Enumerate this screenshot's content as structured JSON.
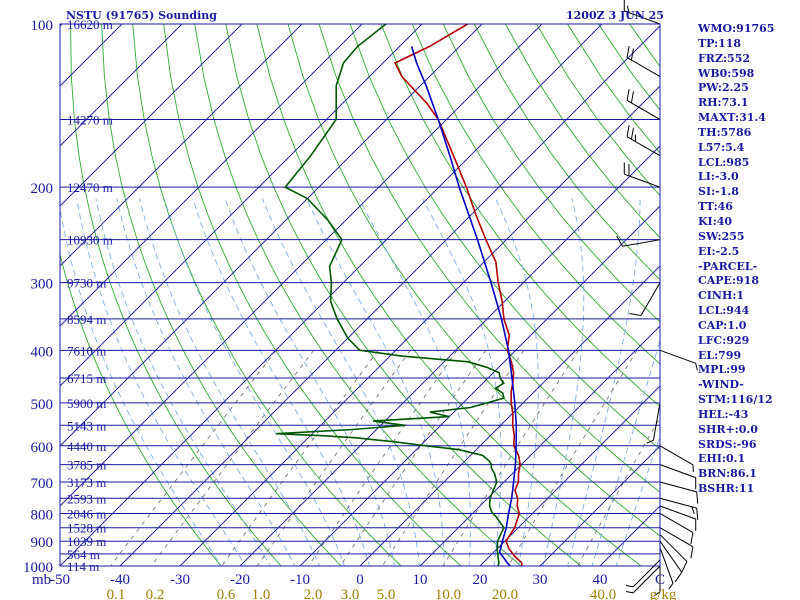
{
  "header": {
    "station": "NSTU (91765) Sounding",
    "time": "1200Z  3 JUN 25"
  },
  "indices": [
    "WMO:91765",
    "TP:118",
    "FRZ:552",
    "WB0:598",
    "PW:2.25",
    "RH:73.1",
    "MAXT:31.4",
    "TH:5786",
    "L57:5.4",
    "LCL:985",
    "LI:-3.0",
    "SI:-1.8",
    "TT:46",
    "KI:40",
    "SW:255",
    "EI:-2.5",
    "-PARCEL-",
    "CAPE:918",
    "CINH:1",
    "LCL:944",
    "CAP:1.0",
    "LFC:929",
    "EL:799",
    "MPL:99",
    "-WIND-",
    "STM:116/12",
    "HEL:-43",
    "SHR+:0.0",
    "SRDS:-96",
    "EHI:0.1",
    "BRN:86.1",
    "BSHR:11"
  ],
  "colors": {
    "isobar": "#1a1aa0",
    "isotherm": "#2a2aa0",
    "dry_adiabat": "#33aa33",
    "moist_adiabat": "#7fb0e8",
    "mixing_ratio": "#777777",
    "temperature": "#b00000",
    "dewpoint": "#005500",
    "parcel": "#0000c0",
    "label": "#1a1aa0",
    "wind": "#000000"
  },
  "chart_data": {
    "type": "line",
    "diagram": "skew-T log-P",
    "x_unit_label": "C",
    "y_unit_label": "mb",
    "x_range_c": [
      -50,
      50
    ],
    "y_range_mb": [
      100,
      1000
    ],
    "y_scale": "log",
    "isotherm_skew": "45 degrees",
    "pressure_ticks": [
      100,
      200,
      300,
      400,
      500,
      600,
      700,
      800,
      900,
      1000
    ],
    "temperature_ticks": [
      "-50",
      "-40",
      "-30",
      "-20",
      "-10",
      "0",
      "10",
      "20",
      "30",
      "40",
      "C"
    ],
    "mixing_ratio_labels": [
      "0.1",
      "0.2",
      "0.6",
      "1.0",
      "2.0",
      "3.0",
      "5.0",
      "10.0",
      "20.0",
      "40.0",
      "g/kg"
    ],
    "height_labels": [
      {
        "p": 100,
        "text": "16620 m"
      },
      {
        "p": 150,
        "text": "14270 m"
      },
      {
        "p": 200,
        "text": "12470 m"
      },
      {
        "p": 250,
        "text": "10930 m"
      },
      {
        "p": 300,
        "text": "9730 m"
      },
      {
        "p": 350,
        "text": "8594 m"
      },
      {
        "p": 400,
        "text": "7610 m"
      },
      {
        "p": 450,
        "text": "6715 m"
      },
      {
        "p": 500,
        "text": "5900 m"
      },
      {
        "p": 550,
        "text": "5143 m"
      },
      {
        "p": 600,
        "text": "4440 m"
      },
      {
        "p": 650,
        "text": "3785 m"
      },
      {
        "p": 700,
        "text": "3173 m"
      },
      {
        "p": 750,
        "text": "2593 m"
      },
      {
        "p": 800,
        "text": "2046 m"
      },
      {
        "p": 850,
        "text": "1528 m"
      },
      {
        "p": 900,
        "text": "1039 m"
      },
      {
        "p": 950,
        "text": "564 m"
      },
      {
        "p": 1000,
        "text": "114 m"
      }
    ],
    "series": [
      {
        "role": "temperature",
        "points": [
          [
            1000,
            27
          ],
          [
            986,
            26.4
          ],
          [
            960,
            24.2
          ],
          [
            930,
            22
          ],
          [
            900,
            20.2
          ],
          [
            875,
            19.8
          ],
          [
            850,
            19.4
          ],
          [
            825,
            18.6
          ],
          [
            800,
            17.8
          ],
          [
            775,
            16.2
          ],
          [
            750,
            15.0
          ],
          [
            725,
            13.2
          ],
          [
            700,
            12.4
          ],
          [
            675,
            11.0
          ],
          [
            650,
            9.8
          ],
          [
            625,
            8.0
          ],
          [
            600,
            5.6
          ],
          [
            575,
            4.0
          ],
          [
            550,
            2.0
          ],
          [
            525,
            0.2
          ],
          [
            500,
            -2.0
          ],
          [
            475,
            -4.0
          ],
          [
            460,
            -5.0
          ],
          [
            440,
            -6.6
          ],
          [
            420,
            -8.8
          ],
          [
            400,
            -11.4
          ],
          [
            375,
            -13.6
          ],
          [
            350,
            -17.2
          ],
          [
            325,
            -20.4
          ],
          [
            300,
            -24.2
          ],
          [
            275,
            -28.0
          ],
          [
            250,
            -33.4
          ],
          [
            225,
            -39.2
          ],
          [
            200,
            -45.4
          ],
          [
            175,
            -52.8
          ],
          [
            150,
            -61.4
          ],
          [
            140,
            -66.0
          ],
          [
            125,
            -74.6
          ],
          [
            118,
            -78.0
          ],
          [
            110,
            -75.0
          ],
          [
            100,
            -72.4
          ]
        ]
      },
      {
        "role": "dewpoint",
        "points": [
          [
            1000,
            23.0
          ],
          [
            986,
            22.6
          ],
          [
            960,
            21.4
          ],
          [
            930,
            20.0
          ],
          [
            900,
            18.8
          ],
          [
            875,
            18.2
          ],
          [
            850,
            17.6
          ],
          [
            825,
            15.6
          ],
          [
            810,
            14.4
          ],
          [
            800,
            13.4
          ],
          [
            790,
            12.6
          ],
          [
            775,
            11.6
          ],
          [
            750,
            10.4
          ],
          [
            725,
            9.6
          ],
          [
            700,
            8.8
          ],
          [
            675,
            7.0
          ],
          [
            660,
            5.6
          ],
          [
            650,
            5.0
          ],
          [
            640,
            4.0
          ],
          [
            625,
            2.0
          ],
          [
            610,
            -3.0
          ],
          [
            600,
            -9.0
          ],
          [
            590,
            -15.0
          ],
          [
            580,
            -22.0
          ],
          [
            575,
            -28.0
          ],
          [
            570,
            -36.0
          ],
          [
            560,
            -24.0
          ],
          [
            550,
            -16.0
          ],
          [
            540,
            -22.0
          ],
          [
            530,
            -10.0
          ],
          [
            520,
            -14.0
          ],
          [
            510,
            -8.0
          ],
          [
            500,
            -6.0
          ],
          [
            490,
            -4.0
          ],
          [
            480,
            -5.0
          ],
          [
            470,
            -7.0
          ],
          [
            460,
            -6.5
          ],
          [
            450,
            -8.0
          ],
          [
            440,
            -9.0
          ],
          [
            430,
            -12.0
          ],
          [
            420,
            -16.0
          ],
          [
            410,
            -28.0
          ],
          [
            400,
            -36.0
          ],
          [
            380,
            -40.0
          ],
          [
            350,
            -45.0
          ],
          [
            325,
            -49.0
          ],
          [
            300,
            -52.0
          ],
          [
            280,
            -55.0
          ],
          [
            250,
            -57.4
          ],
          [
            230,
            -63.0
          ],
          [
            210,
            -70.0
          ],
          [
            200,
            -75.6
          ],
          [
            175,
            -76.6
          ],
          [
            150,
            -78.4
          ],
          [
            130,
            -84.0
          ],
          [
            118,
            -86.6
          ],
          [
            110,
            -87.0
          ],
          [
            100,
            -86.0
          ]
        ]
      },
      {
        "role": "parcel",
        "points": [
          [
            1000,
            25.0
          ],
          [
            986,
            24.0
          ],
          [
            944,
            21.0
          ],
          [
            900,
            19.6
          ],
          [
            850,
            18.0
          ],
          [
            800,
            16.0
          ],
          [
            750,
            14.0
          ],
          [
            700,
            11.6
          ],
          [
            650,
            9.0
          ],
          [
            600,
            6.0
          ],
          [
            550,
            2.6
          ],
          [
            500,
            -1.4
          ],
          [
            450,
            -6.0
          ],
          [
            400,
            -11.2
          ],
          [
            350,
            -17.6
          ],
          [
            300,
            -25.4
          ],
          [
            250,
            -34.8
          ],
          [
            200,
            -46.6
          ],
          [
            175,
            -53.4
          ],
          [
            150,
            -61.4
          ],
          [
            130,
            -69.0
          ],
          [
            118,
            -74.4
          ],
          [
            110,
            -78.0
          ]
        ]
      }
    ],
    "wind_barbs": [
      {
        "p": 1000,
        "dir": 225,
        "spd": 5
      },
      {
        "p": 975,
        "dir": 225,
        "spd": 5
      },
      {
        "p": 950,
        "dir": 180,
        "spd": 5
      },
      {
        "p": 925,
        "dir": 160,
        "spd": 5
      },
      {
        "p": 900,
        "dir": 145,
        "spd": 10
      },
      {
        "p": 875,
        "dir": 135,
        "spd": 10
      },
      {
        "p": 850,
        "dir": 120,
        "spd": 10
      },
      {
        "p": 800,
        "dir": 120,
        "spd": 10
      },
      {
        "p": 775,
        "dir": 110,
        "spd": 10
      },
      {
        "p": 750,
        "dir": 105,
        "spd": 15
      },
      {
        "p": 700,
        "dir": 105,
        "spd": 10
      },
      {
        "p": 650,
        "dir": 110,
        "spd": 10
      },
      {
        "p": 600,
        "dir": 120,
        "spd": 5
      },
      {
        "p": 500,
        "dir": 190,
        "spd": 5
      },
      {
        "p": 400,
        "dir": 110,
        "spd": 5
      },
      {
        "p": 300,
        "dir": 210,
        "spd": 10
      },
      {
        "p": 250,
        "dir": 260,
        "spd": 10
      },
      {
        "p": 200,
        "dir": 290,
        "spd": 20
      },
      {
        "p": 175,
        "dir": 300,
        "spd": 25
      },
      {
        "p": 150,
        "dir": 300,
        "spd": 20
      },
      {
        "p": 125,
        "dir": 300,
        "spd": 20
      },
      {
        "p": 100,
        "dir": 290,
        "spd": 15
      }
    ]
  }
}
